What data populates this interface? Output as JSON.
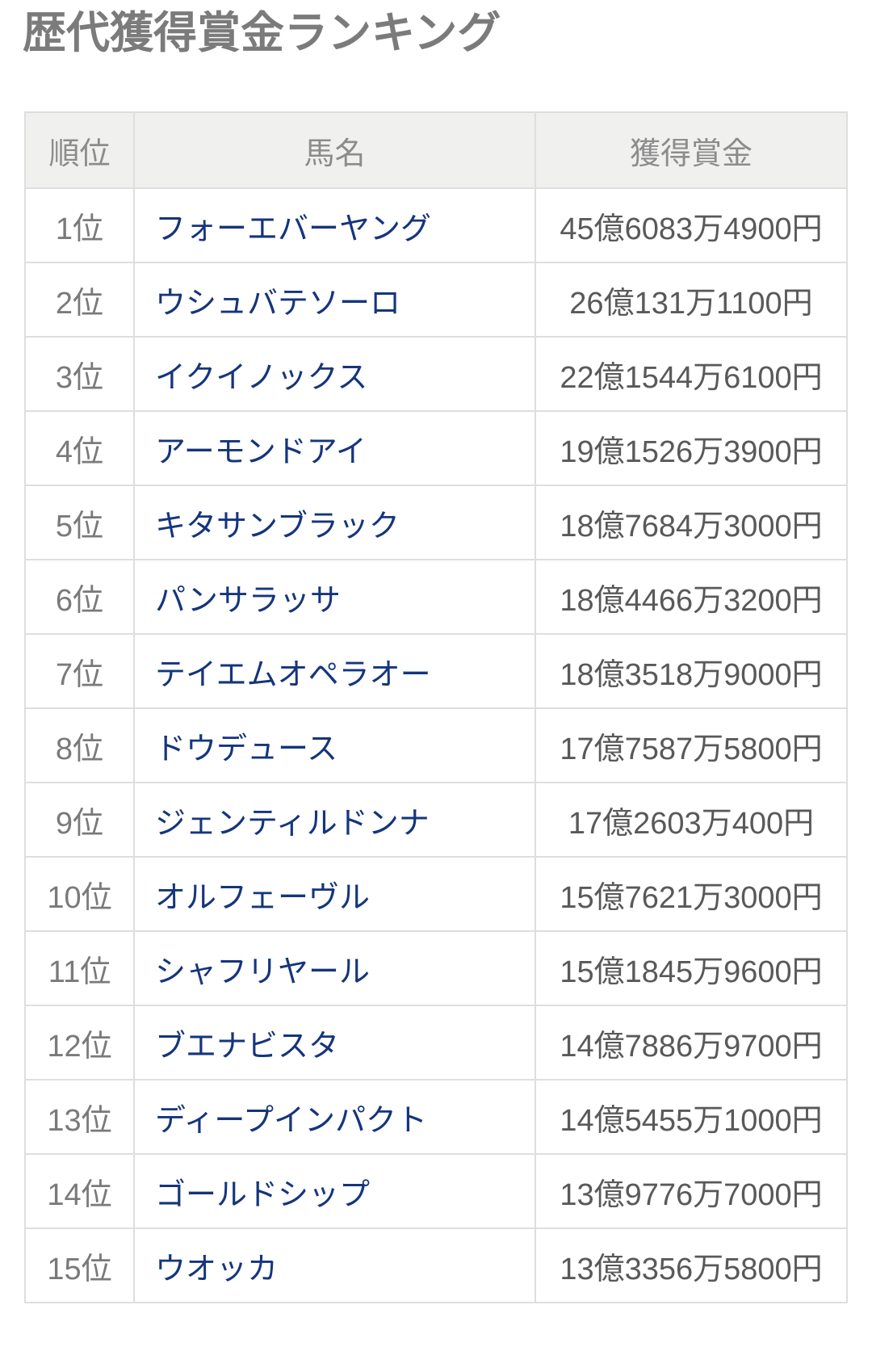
{
  "page": {
    "title": "歴代獲得賞金ランキング"
  },
  "colors": {
    "link-color": "#15357c",
    "title-color": "#7b7b7b",
    "header-bg": "#f0f0ef",
    "header-text": "#8c8c8c",
    "rank-text": "#7a7a7a",
    "prize-text": "#595959",
    "border-color": "#dedede",
    "page-bg": "#ffffff"
  },
  "table": {
    "columns": [
      {
        "key": "rank",
        "label": "順位"
      },
      {
        "key": "horse",
        "label": "馬名"
      },
      {
        "key": "prize",
        "label": "獲得賞金"
      }
    ],
    "rows": [
      {
        "rank": "1位",
        "horse": "フォーエバーヤング",
        "prize": "45億6083万4900円"
      },
      {
        "rank": "2位",
        "horse": "ウシュバテソーロ",
        "prize": "26億131万1100円"
      },
      {
        "rank": "3位",
        "horse": "イクイノックス",
        "prize": "22億1544万6100円"
      },
      {
        "rank": "4位",
        "horse": "アーモンドアイ",
        "prize": "19億1526万3900円"
      },
      {
        "rank": "5位",
        "horse": "キタサンブラック",
        "prize": "18億7684万3000円"
      },
      {
        "rank": "6位",
        "horse": "パンサラッサ",
        "prize": "18億4466万3200円"
      },
      {
        "rank": "7位",
        "horse": "テイエムオペラオー",
        "prize": "18億3518万9000円"
      },
      {
        "rank": "8位",
        "horse": "ドウデュース",
        "prize": "17億7587万5800円"
      },
      {
        "rank": "9位",
        "horse": "ジェンティルドンナ",
        "prize": "17億2603万400円"
      },
      {
        "rank": "10位",
        "horse": "オルフェーヴル",
        "prize": "15億7621万3000円"
      },
      {
        "rank": "11位",
        "horse": "シャフリヤール",
        "prize": "15億1845万9600円"
      },
      {
        "rank": "12位",
        "horse": "ブエナビスタ",
        "prize": "14億7886万9700円"
      },
      {
        "rank": "13位",
        "horse": "ディープインパクト",
        "prize": "14億5455万1000円"
      },
      {
        "rank": "14位",
        "horse": "ゴールドシップ",
        "prize": "13億9776万7000円"
      },
      {
        "rank": "15位",
        "horse": "ウオッカ",
        "prize": "13億3356万5800円"
      }
    ]
  }
}
